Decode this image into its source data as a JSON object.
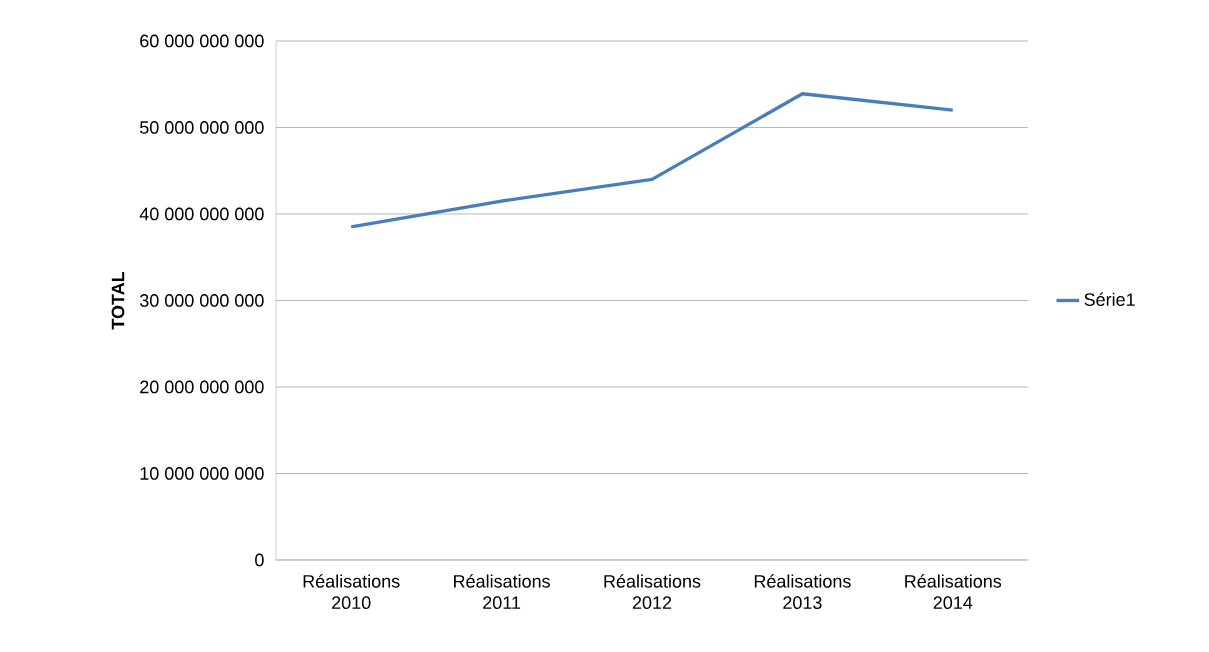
{
  "chart_data": {
    "type": "line",
    "ylabel": "TOTAL",
    "categories": [
      "Réalisations 2010",
      "Réalisations 2011",
      "Réalisations 2012",
      "Réalisations 2013",
      "Réalisations 2014"
    ],
    "series": [
      {
        "name": "Série1",
        "color": "#4a7ebb",
        "values": [
          38500000000,
          41500000000,
          44000000000,
          53900000000,
          52000000000
        ]
      }
    ],
    "ylim": [
      0,
      60000000000
    ],
    "yticks": [
      {
        "value": 0,
        "label": "0"
      },
      {
        "value": 10000000000,
        "label": "10 000 000 000"
      },
      {
        "value": 20000000000,
        "label": "20 000 000 000"
      },
      {
        "value": 30000000000,
        "label": "30 000 000 000"
      },
      {
        "value": 40000000000,
        "label": "40 000 000 000"
      },
      {
        "value": 50000000000,
        "label": "50 000 000 000"
      },
      {
        "value": 60000000000,
        "label": "60 000 000 000"
      }
    ],
    "grid": "y",
    "legend": "right",
    "marker": "none",
    "line_style": "solid"
  }
}
